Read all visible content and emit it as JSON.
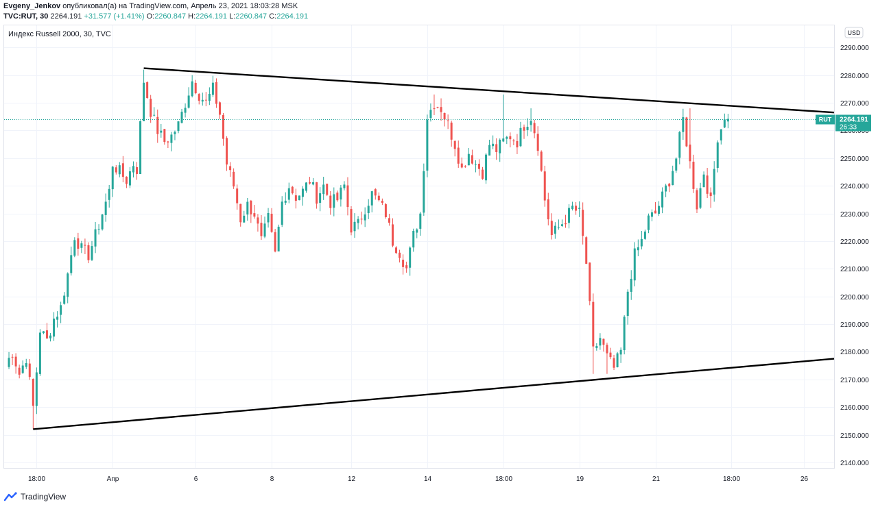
{
  "header": {
    "author": "Evgeny_Jenkov",
    "published_text": "опубликовал(а) на TradingView.com, Апрель 23, 2021 18:03:28 MSK",
    "symbol": "TVC:RUT, 30",
    "last": "2264.191",
    "change": "+31.577 (+1.41%)",
    "o_label": "O:",
    "o_value": "2260.847",
    "h_label": "H:",
    "h_value": "2264.191",
    "l_label": "L:",
    "l_value": "2260.847",
    "c_label": "C:",
    "c_value": "2264.191"
  },
  "chart_title": "Индекс Russell 2000, 30, TVC",
  "currency": "USD",
  "price_tag": {
    "symbol": "RUT",
    "price": "2264.191",
    "countdown": "26:33"
  },
  "footer": {
    "brand": "TradingView"
  },
  "colors": {
    "up": "#26a69a",
    "down": "#ef5350",
    "grid": "#f0f3fa",
    "trendline": "#000000",
    "tag_bg": "#26a69a"
  },
  "chart_data": {
    "type": "candlestick",
    "title": "Индекс Russell 2000, 30, TVC",
    "ylim": [
      2138,
      2298
    ],
    "y_ticks": [
      2140,
      2150,
      2160,
      2170,
      2180,
      2190,
      2200,
      2210,
      2220,
      2230,
      2240,
      2250,
      2260,
      2270,
      2280,
      2290
    ],
    "y_tick_labels": [
      "2140.000",
      "2150.000",
      "2160.000",
      "2170.000",
      "2180.000",
      "2190.000",
      "2200.000",
      "2210.000",
      "2220.000",
      "2230.000",
      "2240.000",
      "2250.000",
      "2260.000",
      "2270.000",
      "2280.000",
      "2290.000"
    ],
    "x_tick_labels": [
      "18:00",
      "Апр",
      "6",
      "8",
      "12",
      "14",
      "18:00",
      "19",
      "21",
      "18:00",
      "26"
    ],
    "x_tick_bar_index": [
      9,
      31,
      55,
      77,
      100,
      122,
      144,
      166,
      188,
      210,
      231
    ],
    "bar_count": 240,
    "trendlines": [
      {
        "name": "upper",
        "from": {
          "bar": 40,
          "price": 2282.5
        },
        "to": {
          "bar": 240,
          "price": 2266.5
        }
      },
      {
        "name": "lower",
        "from": {
          "bar": 8,
          "price": 2152
        },
        "to": {
          "bar": 240,
          "price": 2177.5
        }
      }
    ],
    "current_price": 2264.191,
    "anchors": [
      [
        0,
        2175
      ],
      [
        2,
        2180
      ],
      [
        4,
        2172
      ],
      [
        6,
        2178
      ],
      [
        8,
        2160
      ],
      [
        9,
        2173
      ],
      [
        10,
        2188
      ],
      [
        12,
        2184
      ],
      [
        14,
        2192
      ],
      [
        16,
        2196
      ],
      [
        18,
        2208
      ],
      [
        20,
        2222
      ],
      [
        22,
        2217
      ],
      [
        24,
        2215
      ],
      [
        26,
        2222
      ],
      [
        28,
        2230
      ],
      [
        30,
        2238
      ],
      [
        31,
        2248
      ],
      [
        33,
        2245
      ],
      [
        35,
        2242
      ],
      [
        37,
        2248
      ],
      [
        38,
        2246
      ],
      [
        40,
        2278
      ],
      [
        42,
        2267
      ],
      [
        44,
        2260
      ],
      [
        46,
        2256
      ],
      [
        48,
        2258
      ],
      [
        50,
        2262
      ],
      [
        52,
        2270
      ],
      [
        54,
        2278
      ],
      [
        56,
        2273
      ],
      [
        58,
        2270
      ],
      [
        60,
        2275
      ],
      [
        62,
        2266
      ],
      [
        64,
        2248
      ],
      [
        66,
        2240
      ],
      [
        68,
        2228
      ],
      [
        70,
        2233
      ],
      [
        72,
        2230
      ],
      [
        74,
        2220
      ],
      [
        76,
        2228
      ],
      [
        78,
        2215
      ],
      [
        80,
        2234
      ],
      [
        82,
        2240
      ],
      [
        84,
        2236
      ],
      [
        86,
        2238
      ],
      [
        88,
        2242
      ],
      [
        90,
        2236
      ],
      [
        92,
        2240
      ],
      [
        94,
        2234
      ],
      [
        96,
        2235
      ],
      [
        98,
        2240
      ],
      [
        100,
        2225
      ],
      [
        102,
        2226
      ],
      [
        104,
        2232
      ],
      [
        106,
        2237
      ],
      [
        108,
        2234
      ],
      [
        110,
        2230
      ],
      [
        112,
        2220
      ],
      [
        114,
        2216
      ],
      [
        116,
        2210
      ],
      [
        118,
        2222
      ],
      [
        120,
        2230
      ],
      [
        122,
        2265
      ],
      [
        124,
        2270
      ],
      [
        126,
        2268
      ],
      [
        128,
        2262
      ],
      [
        130,
        2255
      ],
      [
        132,
        2246
      ],
      [
        134,
        2252
      ],
      [
        136,
        2248
      ],
      [
        138,
        2245
      ],
      [
        140,
        2255
      ],
      [
        142,
        2253
      ],
      [
        144,
        2256
      ],
      [
        146,
        2258
      ],
      [
        148,
        2256
      ],
      [
        150,
        2262
      ],
      [
        152,
        2265
      ],
      [
        154,
        2255
      ],
      [
        156,
        2235
      ],
      [
        158,
        2222
      ],
      [
        160,
        2225
      ],
      [
        162,
        2228
      ],
      [
        164,
        2232
      ],
      [
        166,
        2230
      ],
      [
        168,
        2212
      ],
      [
        170,
        2180
      ],
      [
        172,
        2185
      ],
      [
        174,
        2178
      ],
      [
        176,
        2174
      ],
      [
        178,
        2180
      ],
      [
        180,
        2202
      ],
      [
        182,
        2215
      ],
      [
        184,
        2220
      ],
      [
        186,
        2228
      ],
      [
        188,
        2230
      ],
      [
        190,
        2236
      ],
      [
        192,
        2242
      ],
      [
        194,
        2250
      ],
      [
        196,
        2264
      ],
      [
        198,
        2248
      ],
      [
        200,
        2233
      ],
      [
        202,
        2245
      ],
      [
        204,
        2234
      ],
      [
        206,
        2258
      ],
      [
        208,
        2264
      ]
    ],
    "highlights": [
      [
        40,
        2282
      ],
      [
        54,
        2280
      ],
      [
        124,
        2273
      ],
      [
        144,
        2273
      ],
      [
        152,
        2268
      ],
      [
        170,
        2172
      ],
      [
        174,
        2172
      ],
      [
        198,
        2268
      ],
      [
        204,
        2232
      ],
      [
        8,
        2152
      ]
    ]
  }
}
